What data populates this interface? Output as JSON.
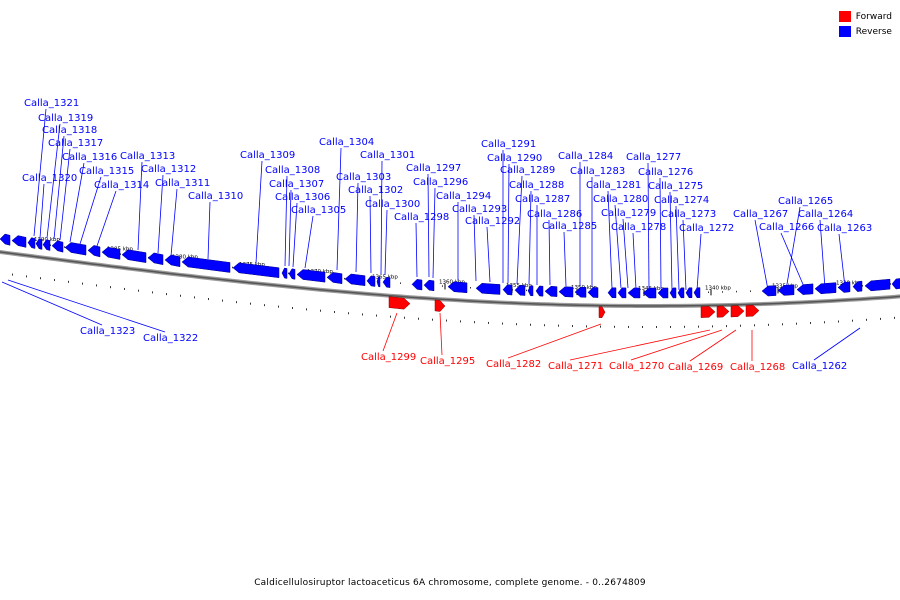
{
  "legend": {
    "forward_label": "Forward",
    "reverse_label": "Reverse",
    "forward_color": "#ff0000",
    "reverse_color": "#0000ff"
  },
  "caption": "Caldicellulosiruptor lactoaceticus 6A chromosome, complete genome. - 0..2674809",
  "scale_ticks": [
    "1390 kbp",
    "1385 kbp",
    "1380 kbp",
    "1375 kbp",
    "1370 kbp",
    "1365 kbp",
    "1360 kbp",
    "1355 kbp",
    "1350 kbp",
    "1345 kbp",
    "1340 kbp",
    "1335 kbp",
    "1330 kbp"
  ],
  "reverse_genes": [
    "Calla_1323",
    "Calla_1322",
    "Calla_1321",
    "Calla_1320",
    "Calla_1319",
    "Calla_1318",
    "Calla_1317",
    "Calla_1316",
    "Calla_1315",
    "Calla_1314",
    "Calla_1313",
    "Calla_1312",
    "Calla_1311",
    "Calla_1310",
    "Calla_1309",
    "Calla_1308",
    "Calla_1307",
    "Calla_1306",
    "Calla_1305",
    "Calla_1304",
    "Calla_1303",
    "Calla_1302",
    "Calla_1301",
    "Calla_1300",
    "Calla_1298",
    "Calla_1297",
    "Calla_1296",
    "Calla_1294",
    "Calla_1293",
    "Calla_1292",
    "Calla_1291",
    "Calla_1290",
    "Calla_1289",
    "Calla_1288",
    "Calla_1287",
    "Calla_1286",
    "Calla_1285",
    "Calla_1284",
    "Calla_1283",
    "Calla_1281",
    "Calla_1280",
    "Calla_1279",
    "Calla_1278",
    "Calla_1277",
    "Calla_1276",
    "Calla_1275",
    "Calla_1274",
    "Calla_1273",
    "Calla_1272",
    "Calla_1267",
    "Calla_1266",
    "Calla_1265",
    "Calla_1264",
    "Calla_1263",
    "Calla_1262"
  ],
  "forward_genes": [
    "Calla_1299",
    "Calla_1295",
    "Calla_1282",
    "Calla_1271",
    "Calla_1270",
    "Calla_1269",
    "Calla_1268"
  ]
}
